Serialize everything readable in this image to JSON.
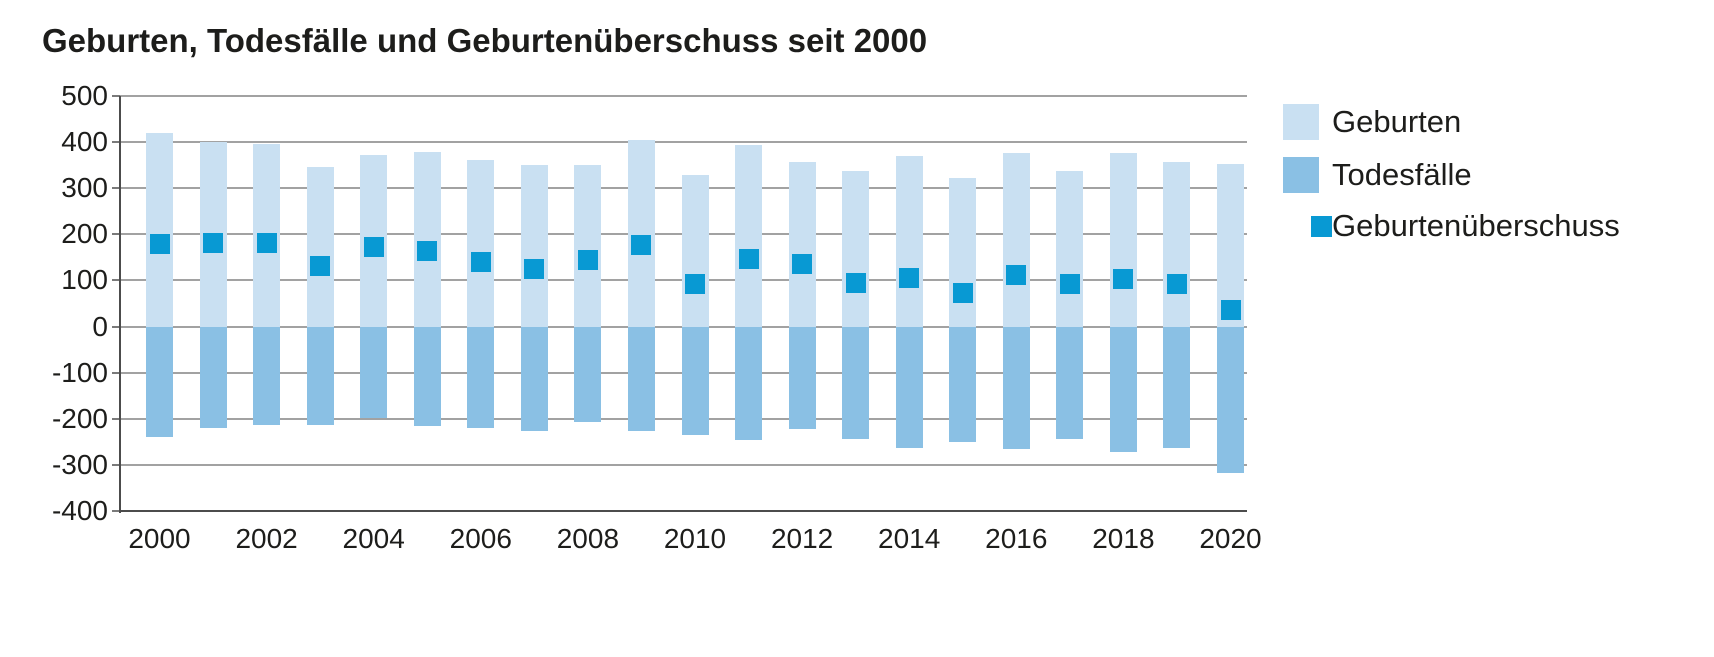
{
  "title": "Geburten, Todesfälle und Geburtenüberschuss seit 2000",
  "colors": {
    "births": "#c9e0f2",
    "deaths": "#8ac0e4",
    "surplus": "#0899d3",
    "grid": "#a2a2a2",
    "axis": "#4c4c4c",
    "text": "#1d1d1b",
    "background": "#ffffff"
  },
  "legend": {
    "items": [
      {
        "label": "Geburten",
        "color_key": "births"
      },
      {
        "label": "Todesfälle",
        "color_key": "deaths"
      },
      {
        "label": "Geburtenüberschuss",
        "color_key": "surplus"
      }
    ]
  },
  "chart_data": {
    "type": "bar",
    "title": "Geburten, Todesfälle und Geburtenüberschuss seit 2000",
    "categories": [
      "2000",
      "2001",
      "2002",
      "2003",
      "2004",
      "2005",
      "2006",
      "2007",
      "2008",
      "2009",
      "2010",
      "2011",
      "2012",
      "2013",
      "2014",
      "2015",
      "2016",
      "2017",
      "2018",
      "2019",
      "2020"
    ],
    "series": [
      {
        "name": "Geburten",
        "style": "bar",
        "color_key": "births",
        "values": [
          420,
          400,
          395,
          346,
          371,
          379,
          362,
          350,
          350,
          404,
          328,
          394,
          357,
          337,
          370,
          322,
          377,
          337,
          377,
          356,
          352
        ]
      },
      {
        "name": "Todesfälle",
        "style": "bar",
        "color_key": "deaths",
        "values": [
          -240,
          -219,
          -213,
          -214,
          -198,
          -215,
          -221,
          -226,
          -206,
          -227,
          -236,
          -247,
          -222,
          -243,
          -264,
          -250,
          -265,
          -244,
          -273,
          -264,
          -317
        ]
      },
      {
        "name": "Geburtenüberschuss",
        "style": "square",
        "color_key": "surplus",
        "values": [
          180,
          181,
          182,
          132,
          173,
          164,
          141,
          124,
          144,
          177,
          92,
          147,
          135,
          94,
          106,
          72,
          112,
          93,
          104,
          92,
          35
        ]
      }
    ],
    "xlabel": "",
    "ylabel": "",
    "ylim": [
      -400,
      500
    ],
    "ytick_step": 100,
    "xtick_every": 2,
    "grid": true,
    "legend_position": "right"
  }
}
